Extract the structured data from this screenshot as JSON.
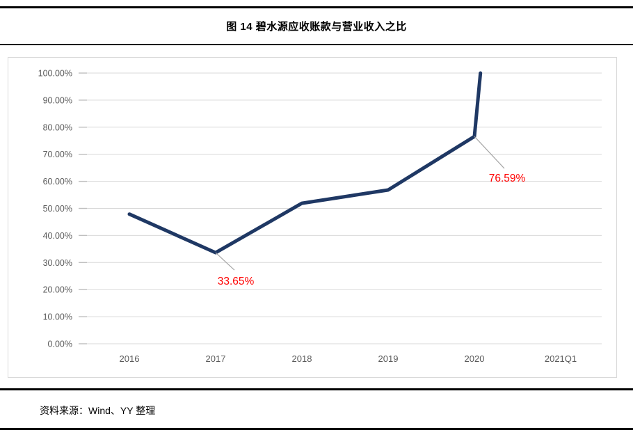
{
  "header": {
    "title": "图 14 碧水源应收账款与营业收入之比"
  },
  "footer": {
    "source": "资料来源：Wind、YY 整理"
  },
  "chart_data": {
    "type": "line",
    "title": "图 14 碧水源应收账款与营业收入之比",
    "categories": [
      "2016",
      "2017",
      "2018",
      "2019",
      "2020",
      "2021Q1"
    ],
    "values": [
      47.9,
      33.65,
      51.9,
      56.8,
      76.59,
      null
    ],
    "labeled_points": [
      {
        "category": "2017",
        "label": "33.65%"
      },
      {
        "category": "2020",
        "label": "76.59%"
      }
    ],
    "plotted_points_pct": [
      [
        0,
        47.9
      ],
      [
        1,
        33.65
      ],
      [
        2,
        51.9
      ],
      [
        3,
        56.8
      ],
      [
        4,
        76.59
      ],
      [
        4.07,
        100
      ]
    ],
    "clip_note": "2021Q1 value exceeds the y-axis maximum; the line is clipped at 100.00%",
    "xlabel": "",
    "ylabel": "",
    "ylim": [
      0,
      100
    ],
    "y_tick_step": 10,
    "y_tick_labels": [
      "0.00%",
      "10.00%",
      "20.00%",
      "30.00%",
      "40.00%",
      "50.00%",
      "60.00%",
      "70.00%",
      "80.00%",
      "90.00%",
      "100.00%"
    ],
    "grid": true,
    "legend": "none",
    "colors": {
      "line": "#1F3864",
      "data_label": "#FF0000",
      "axis_text": "#595959",
      "gridline": "#D9D9D9",
      "tick": "#BFBFBF",
      "leader_line": "#A6A6A6",
      "chart_border": "#D9D9D9",
      "rule": "#000000"
    }
  }
}
